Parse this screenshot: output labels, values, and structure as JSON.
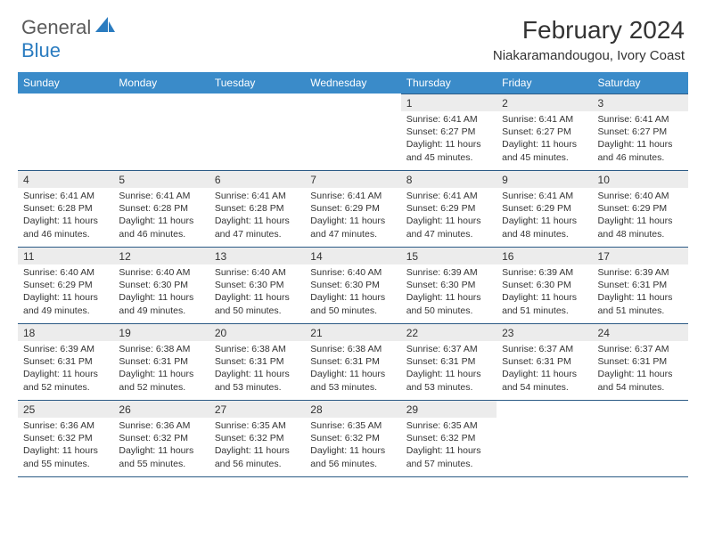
{
  "logo": {
    "general": "General",
    "blue": "Blue"
  },
  "title": "February 2024",
  "location": "Niakaramandougou, Ivory Coast",
  "colors": {
    "header_bg": "#3a8bc9",
    "header_text": "#ffffff",
    "daynum_bg": "#ececec",
    "rule": "#2b5a85",
    "text": "#333333",
    "logo_gray": "#5a5a5a",
    "logo_blue": "#2b7cc0"
  },
  "weekdays": [
    "Sunday",
    "Monday",
    "Tuesday",
    "Wednesday",
    "Thursday",
    "Friday",
    "Saturday"
  ],
  "weeks": [
    [
      {
        "day": "",
        "sunrise": "",
        "sunset": "",
        "daylight": ""
      },
      {
        "day": "",
        "sunrise": "",
        "sunset": "",
        "daylight": ""
      },
      {
        "day": "",
        "sunrise": "",
        "sunset": "",
        "daylight": ""
      },
      {
        "day": "",
        "sunrise": "",
        "sunset": "",
        "daylight": ""
      },
      {
        "day": "1",
        "sunrise": "Sunrise: 6:41 AM",
        "sunset": "Sunset: 6:27 PM",
        "daylight": "Daylight: 11 hours and 45 minutes."
      },
      {
        "day": "2",
        "sunrise": "Sunrise: 6:41 AM",
        "sunset": "Sunset: 6:27 PM",
        "daylight": "Daylight: 11 hours and 45 minutes."
      },
      {
        "day": "3",
        "sunrise": "Sunrise: 6:41 AM",
        "sunset": "Sunset: 6:27 PM",
        "daylight": "Daylight: 11 hours and 46 minutes."
      }
    ],
    [
      {
        "day": "4",
        "sunrise": "Sunrise: 6:41 AM",
        "sunset": "Sunset: 6:28 PM",
        "daylight": "Daylight: 11 hours and 46 minutes."
      },
      {
        "day": "5",
        "sunrise": "Sunrise: 6:41 AM",
        "sunset": "Sunset: 6:28 PM",
        "daylight": "Daylight: 11 hours and 46 minutes."
      },
      {
        "day": "6",
        "sunrise": "Sunrise: 6:41 AM",
        "sunset": "Sunset: 6:28 PM",
        "daylight": "Daylight: 11 hours and 47 minutes."
      },
      {
        "day": "7",
        "sunrise": "Sunrise: 6:41 AM",
        "sunset": "Sunset: 6:29 PM",
        "daylight": "Daylight: 11 hours and 47 minutes."
      },
      {
        "day": "8",
        "sunrise": "Sunrise: 6:41 AM",
        "sunset": "Sunset: 6:29 PM",
        "daylight": "Daylight: 11 hours and 47 minutes."
      },
      {
        "day": "9",
        "sunrise": "Sunrise: 6:41 AM",
        "sunset": "Sunset: 6:29 PM",
        "daylight": "Daylight: 11 hours and 48 minutes."
      },
      {
        "day": "10",
        "sunrise": "Sunrise: 6:40 AM",
        "sunset": "Sunset: 6:29 PM",
        "daylight": "Daylight: 11 hours and 48 minutes."
      }
    ],
    [
      {
        "day": "11",
        "sunrise": "Sunrise: 6:40 AM",
        "sunset": "Sunset: 6:29 PM",
        "daylight": "Daylight: 11 hours and 49 minutes."
      },
      {
        "day": "12",
        "sunrise": "Sunrise: 6:40 AM",
        "sunset": "Sunset: 6:30 PM",
        "daylight": "Daylight: 11 hours and 49 minutes."
      },
      {
        "day": "13",
        "sunrise": "Sunrise: 6:40 AM",
        "sunset": "Sunset: 6:30 PM",
        "daylight": "Daylight: 11 hours and 50 minutes."
      },
      {
        "day": "14",
        "sunrise": "Sunrise: 6:40 AM",
        "sunset": "Sunset: 6:30 PM",
        "daylight": "Daylight: 11 hours and 50 minutes."
      },
      {
        "day": "15",
        "sunrise": "Sunrise: 6:39 AM",
        "sunset": "Sunset: 6:30 PM",
        "daylight": "Daylight: 11 hours and 50 minutes."
      },
      {
        "day": "16",
        "sunrise": "Sunrise: 6:39 AM",
        "sunset": "Sunset: 6:30 PM",
        "daylight": "Daylight: 11 hours and 51 minutes."
      },
      {
        "day": "17",
        "sunrise": "Sunrise: 6:39 AM",
        "sunset": "Sunset: 6:31 PM",
        "daylight": "Daylight: 11 hours and 51 minutes."
      }
    ],
    [
      {
        "day": "18",
        "sunrise": "Sunrise: 6:39 AM",
        "sunset": "Sunset: 6:31 PM",
        "daylight": "Daylight: 11 hours and 52 minutes."
      },
      {
        "day": "19",
        "sunrise": "Sunrise: 6:38 AM",
        "sunset": "Sunset: 6:31 PM",
        "daylight": "Daylight: 11 hours and 52 minutes."
      },
      {
        "day": "20",
        "sunrise": "Sunrise: 6:38 AM",
        "sunset": "Sunset: 6:31 PM",
        "daylight": "Daylight: 11 hours and 53 minutes."
      },
      {
        "day": "21",
        "sunrise": "Sunrise: 6:38 AM",
        "sunset": "Sunset: 6:31 PM",
        "daylight": "Daylight: 11 hours and 53 minutes."
      },
      {
        "day": "22",
        "sunrise": "Sunrise: 6:37 AM",
        "sunset": "Sunset: 6:31 PM",
        "daylight": "Daylight: 11 hours and 53 minutes."
      },
      {
        "day": "23",
        "sunrise": "Sunrise: 6:37 AM",
        "sunset": "Sunset: 6:31 PM",
        "daylight": "Daylight: 11 hours and 54 minutes."
      },
      {
        "day": "24",
        "sunrise": "Sunrise: 6:37 AM",
        "sunset": "Sunset: 6:31 PM",
        "daylight": "Daylight: 11 hours and 54 minutes."
      }
    ],
    [
      {
        "day": "25",
        "sunrise": "Sunrise: 6:36 AM",
        "sunset": "Sunset: 6:32 PM",
        "daylight": "Daylight: 11 hours and 55 minutes."
      },
      {
        "day": "26",
        "sunrise": "Sunrise: 6:36 AM",
        "sunset": "Sunset: 6:32 PM",
        "daylight": "Daylight: 11 hours and 55 minutes."
      },
      {
        "day": "27",
        "sunrise": "Sunrise: 6:35 AM",
        "sunset": "Sunset: 6:32 PM",
        "daylight": "Daylight: 11 hours and 56 minutes."
      },
      {
        "day": "28",
        "sunrise": "Sunrise: 6:35 AM",
        "sunset": "Sunset: 6:32 PM",
        "daylight": "Daylight: 11 hours and 56 minutes."
      },
      {
        "day": "29",
        "sunrise": "Sunrise: 6:35 AM",
        "sunset": "Sunset: 6:32 PM",
        "daylight": "Daylight: 11 hours and 57 minutes."
      },
      {
        "day": "",
        "sunrise": "",
        "sunset": "",
        "daylight": ""
      },
      {
        "day": "",
        "sunrise": "",
        "sunset": "",
        "daylight": ""
      }
    ]
  ]
}
